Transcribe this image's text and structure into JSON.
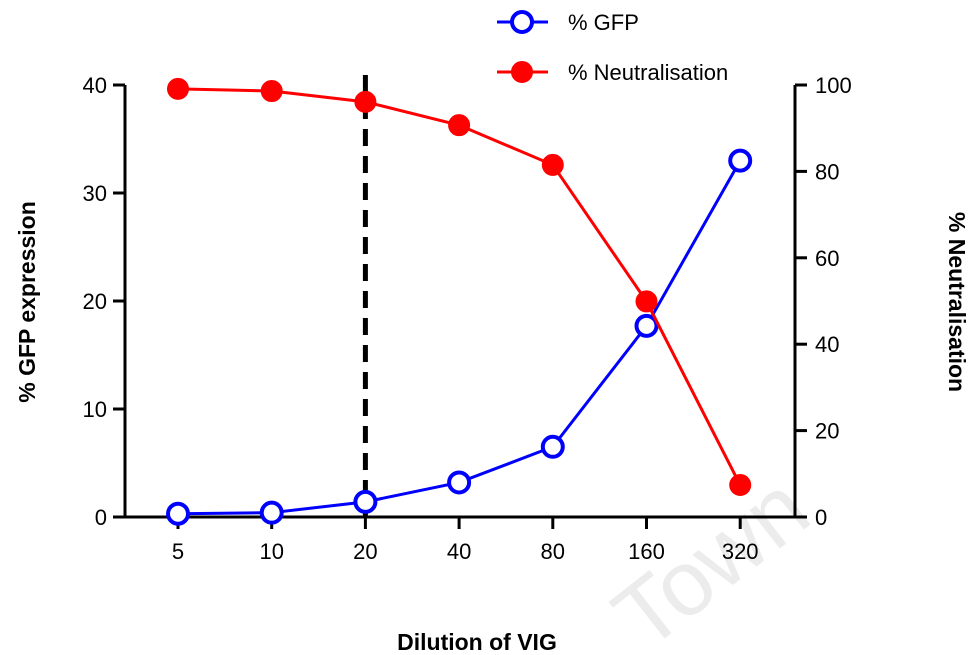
{
  "chart_data": {
    "type": "line",
    "categories": [
      "5",
      "10",
      "20",
      "40",
      "80",
      "160",
      "320"
    ],
    "xlabel": "Dilution of VIG",
    "ylabel_left": "% GFP expression",
    "ylabel_right": "% Neutralisation",
    "ylim_left": [
      0,
      40
    ],
    "ylim_right": [
      0,
      100
    ],
    "yticks_left": [
      "0",
      "10",
      "20",
      "30",
      "40"
    ],
    "yticks_right": [
      "0",
      "20",
      "40",
      "60",
      "80",
      "100"
    ],
    "reference_line": {
      "category": "20",
      "style": "dashed"
    },
    "legend_position": "top-right",
    "series": [
      {
        "name": "% GFP",
        "axis": "left",
        "marker": "open-circle",
        "color": "#0000ff",
        "values": [
          0.3,
          0.4,
          1.4,
          3.2,
          6.5,
          17.7,
          33.0
        ]
      },
      {
        "name": "% Neutralisation",
        "axis": "right",
        "marker": "filled-circle",
        "color": "#ff0000",
        "values": [
          99.1,
          98.6,
          96.1,
          90.7,
          81.5,
          49.9,
          7.4
        ]
      }
    ]
  },
  "watermark": "Town"
}
